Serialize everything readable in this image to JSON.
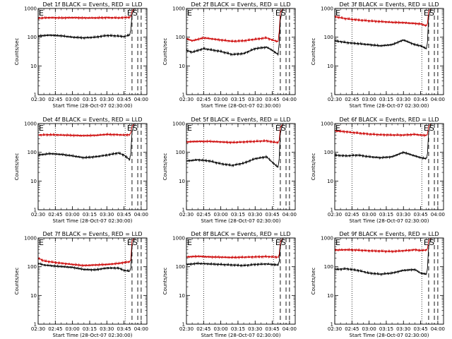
{
  "figure": {
    "bg": "#ffffff",
    "ylabel": "Counts/sec",
    "xlabel": "Start Time (28-Oct-07 02:30:00)"
  },
  "chart_data": [
    {
      "type": "line",
      "detector": "1f",
      "title": "Det 1f BLACK = Events, RED = LLD",
      "xlabel": "Start Time (28-Oct-07 02:30:00)",
      "ylabel": "Counts/sec",
      "y_scale": "log",
      "ylim": [
        1,
        1000
      ],
      "yticks": [
        "1",
        "10",
        "100",
        "1000"
      ],
      "xticks": [
        "02:30",
        "02:45",
        "03:00",
        "03:15",
        "03:30",
        "03:45",
        "04:00"
      ],
      "dotted_lines_x": [
        "02:45",
        "03:46"
      ],
      "dashed_lines_x": [
        "03:52",
        "03:57",
        "04:00"
      ],
      "dashed_labels": [
        "E",
        "S"
      ],
      "series": [
        {
          "color": "#cc0000",
          "x": [
            "02:30",
            "02:40",
            "02:50",
            "03:00",
            "03:10",
            "03:20",
            "03:30",
            "03:40",
            "03:45",
            "03:50",
            "03:51",
            "03:52",
            "03:54",
            "04:00",
            "04:03"
          ],
          "y": [
            460,
            480,
            470,
            480,
            470,
            470,
            480,
            470,
            480,
            500,
            520,
            800,
            1000,
            1000,
            1000
          ]
        },
        {
          "color": "#000000",
          "x": [
            "02:30",
            "02:40",
            "02:50",
            "03:00",
            "03:10",
            "03:20",
            "03:30",
            "03:40",
            "03:45",
            "03:50",
            "03:51",
            "03:52",
            "03:54",
            "04:00",
            "04:03"
          ],
          "y": [
            110,
            118,
            112,
            100,
            95,
            100,
            115,
            110,
            105,
            120,
            180,
            600,
            1000,
            1000,
            1000
          ]
        }
      ]
    },
    {
      "type": "line",
      "detector": "2f",
      "title": "Det 2f BLACK = Events, RED = LLD",
      "xlabel": "Start Time (28-Oct-07 02:30:00)",
      "ylabel": "Counts/sec",
      "y_scale": "log",
      "ylim": [
        1,
        1000
      ],
      "yticks": [
        "1",
        "10",
        "100",
        "1000"
      ],
      "xticks": [
        "02:30",
        "02:45",
        "03:00",
        "03:15",
        "03:30",
        "03:45",
        "04:00"
      ],
      "dotted_lines_x": [
        "02:45",
        "03:46"
      ],
      "dashed_lines_x": [
        "03:52",
        "03:57",
        "04:00"
      ],
      "dashed_labels": [
        "E",
        "S"
      ],
      "series": [
        {
          "color": "#cc0000",
          "x": [
            "02:30",
            "02:35",
            "02:45",
            "03:00",
            "03:10",
            "03:20",
            "03:30",
            "03:40",
            "03:45",
            "03:50",
            "03:51",
            "03:52",
            "03:54",
            "04:00",
            "04:03"
          ],
          "y": [
            90,
            75,
            95,
            80,
            72,
            75,
            85,
            95,
            80,
            70,
            150,
            700,
            1000,
            1000,
            1000
          ]
        },
        {
          "color": "#000000",
          "x": [
            "02:30",
            "02:35",
            "02:45",
            "03:00",
            "03:10",
            "03:20",
            "03:30",
            "03:40",
            "03:45",
            "03:50",
            "03:51",
            "03:52",
            "03:54",
            "04:00",
            "04:03"
          ],
          "y": [
            35,
            30,
            40,
            32,
            25,
            27,
            40,
            45,
            35,
            25,
            60,
            400,
            1000,
            1000,
            1000
          ]
        }
      ]
    },
    {
      "type": "line",
      "detector": "3f",
      "title": "Det 3f BLACK = Events, RED = LLD",
      "xlabel": "Start Time (28-Oct-07 02:30:00)",
      "ylabel": "Counts/sec",
      "y_scale": "log",
      "ylim": [
        1,
        1000
      ],
      "yticks": [
        "1",
        "10",
        "100",
        "1000"
      ],
      "xticks": [
        "02:30",
        "02:45",
        "03:00",
        "03:15",
        "03:30",
        "03:45",
        "04:00"
      ],
      "dotted_lines_x": [
        "02:45",
        "03:46"
      ],
      "dashed_lines_x": [
        "03:52",
        "03:57",
        "04:00"
      ],
      "dashed_labels": [
        "E",
        "S"
      ],
      "series": [
        {
          "color": "#cc0000",
          "x": [
            "02:30",
            "02:40",
            "02:50",
            "03:00",
            "03:10",
            "03:20",
            "03:30",
            "03:40",
            "03:45",
            "03:50",
            "03:51",
            "03:52",
            "03:54",
            "04:00",
            "04:03"
          ],
          "y": [
            520,
            440,
            400,
            370,
            350,
            330,
            320,
            300,
            290,
            250,
            300,
            800,
            1000,
            1000,
            1000
          ]
        },
        {
          "color": "#000000",
          "x": [
            "02:30",
            "02:40",
            "02:50",
            "03:00",
            "03:10",
            "03:20",
            "03:30",
            "03:40",
            "03:45",
            "03:50",
            "03:51",
            "03:52",
            "03:54",
            "04:00",
            "04:03"
          ],
          "y": [
            75,
            65,
            60,
            55,
            50,
            55,
            80,
            55,
            50,
            40,
            70,
            500,
            1000,
            1000,
            1000
          ]
        }
      ]
    },
    {
      "type": "line",
      "detector": "4f",
      "title": "Det 4f BLACK = Events, RED = LLD",
      "xlabel": "Start Time (28-Oct-07 02:30:00)",
      "ylabel": "Counts/sec",
      "y_scale": "log",
      "ylim": [
        1,
        1000
      ],
      "yticks": [
        "1",
        "10",
        "100",
        "1000"
      ],
      "xticks": [
        "02:30",
        "02:45",
        "03:00",
        "03:15",
        "03:30",
        "03:45",
        "04:00"
      ],
      "dotted_lines_x": [
        "02:45",
        "03:46"
      ],
      "dashed_lines_x": [
        "03:52",
        "03:57",
        "04:00"
      ],
      "dashed_labels": [
        "E",
        "S"
      ],
      "series": [
        {
          "color": "#cc0000",
          "x": [
            "02:30",
            "02:40",
            "02:50",
            "03:00",
            "03:10",
            "03:20",
            "03:30",
            "03:40",
            "03:45",
            "03:50",
            "03:51",
            "03:52",
            "03:54",
            "04:00",
            "04:03"
          ],
          "y": [
            400,
            410,
            400,
            390,
            380,
            390,
            420,
            410,
            400,
            410,
            480,
            800,
            1000,
            1000,
            1000
          ]
        },
        {
          "color": "#000000",
          "x": [
            "02:30",
            "02:40",
            "02:50",
            "03:00",
            "03:10",
            "03:20",
            "03:30",
            "03:40",
            "03:45",
            "03:50",
            "03:51",
            "03:52",
            "03:54",
            "04:00",
            "04:03"
          ],
          "y": [
            80,
            90,
            85,
            75,
            65,
            70,
            80,
            95,
            80,
            55,
            100,
            500,
            1000,
            1000,
            1000
          ]
        }
      ]
    },
    {
      "type": "line",
      "detector": "5f",
      "title": "Det 5f BLACK = Events, RED = LLD",
      "xlabel": "Start Time (28-Oct-07 02:30:00)",
      "ylabel": "Counts/sec",
      "y_scale": "log",
      "ylim": [
        1,
        1000
      ],
      "yticks": [
        "1",
        "10",
        "100",
        "1000"
      ],
      "xticks": [
        "02:30",
        "02:45",
        "03:00",
        "03:15",
        "03:30",
        "03:45",
        "04:00"
      ],
      "dotted_lines_x": [
        "02:45",
        "03:46"
      ],
      "dashed_lines_x": [
        "03:52",
        "03:57",
        "04:00"
      ],
      "dashed_labels": [
        "E",
        "S"
      ],
      "series": [
        {
          "color": "#cc0000",
          "x": [
            "02:30",
            "02:40",
            "02:50",
            "03:00",
            "03:10",
            "03:20",
            "03:30",
            "03:40",
            "03:45",
            "03:50",
            "03:51",
            "03:52",
            "03:54",
            "04:00",
            "04:03"
          ],
          "y": [
            230,
            240,
            240,
            230,
            220,
            230,
            240,
            250,
            230,
            220,
            260,
            700,
            1000,
            1000,
            1000
          ]
        },
        {
          "color": "#000000",
          "x": [
            "02:30",
            "02:40",
            "02:50",
            "03:00",
            "03:10",
            "03:20",
            "03:30",
            "03:40",
            "03:45",
            "03:50",
            "03:51",
            "03:52",
            "03:54",
            "04:00",
            "04:03"
          ],
          "y": [
            50,
            55,
            50,
            40,
            35,
            42,
            60,
            70,
            45,
            30,
            60,
            450,
            1000,
            1000,
            1000
          ]
        }
      ]
    },
    {
      "type": "line",
      "detector": "6f",
      "title": "Det 6f BLACK = Events, RED = LLD",
      "xlabel": "Start Time (28-Oct-07 02:30:00)",
      "ylabel": "Counts/sec",
      "y_scale": "log",
      "ylim": [
        1,
        1000
      ],
      "yticks": [
        "1",
        "10",
        "100",
        "1000"
      ],
      "xticks": [
        "02:30",
        "02:45",
        "03:00",
        "03:15",
        "03:30",
        "03:45",
        "04:00"
      ],
      "dotted_lines_x": [
        "02:45",
        "03:46"
      ],
      "dashed_lines_x": [
        "03:52",
        "03:57",
        "04:00"
      ],
      "dashed_labels": [
        "E",
        "S"
      ],
      "series": [
        {
          "color": "#cc0000",
          "x": [
            "02:30",
            "02:40",
            "02:50",
            "03:00",
            "03:10",
            "03:20",
            "03:30",
            "03:40",
            "03:45",
            "03:50",
            "03:51",
            "03:52",
            "03:54",
            "04:00",
            "04:03"
          ],
          "y": [
            560,
            520,
            470,
            430,
            410,
            400,
            400,
            420,
            400,
            390,
            450,
            800,
            1000,
            1000,
            1000
          ]
        },
        {
          "color": "#000000",
          "x": [
            "02:30",
            "02:40",
            "02:50",
            "03:00",
            "03:10",
            "03:20",
            "03:30",
            "03:40",
            "03:45",
            "03:50",
            "03:51",
            "03:52",
            "03:54",
            "04:00",
            "04:03"
          ],
          "y": [
            80,
            75,
            80,
            70,
            65,
            70,
            100,
            75,
            65,
            60,
            90,
            500,
            1000,
            1000,
            1000
          ]
        }
      ]
    },
    {
      "type": "line",
      "detector": "7f",
      "title": "Det 7f BLACK = Events, RED = LLD",
      "xlabel": "Start Time (28-Oct-07 02:30:00)",
      "ylabel": "Counts/sec",
      "y_scale": "log",
      "ylim": [
        1,
        1000
      ],
      "yticks": [
        "1",
        "10",
        "100",
        "1000"
      ],
      "xticks": [
        "02:30",
        "02:45",
        "03:00",
        "03:15",
        "03:30",
        "03:45",
        "04:00"
      ],
      "dotted_lines_x": [
        "02:45",
        "03:46"
      ],
      "dashed_lines_x": [
        "03:52",
        "03:57",
        "04:00"
      ],
      "dashed_labels": [
        "E",
        "S"
      ],
      "series": [
        {
          "color": "#cc0000",
          "x": [
            "02:30",
            "02:35",
            "02:45",
            "03:00",
            "03:10",
            "03:20",
            "03:30",
            "03:40",
            "03:45",
            "03:50",
            "03:51",
            "03:52",
            "03:54",
            "04:00",
            "04:03"
          ],
          "y": [
            200,
            160,
            140,
            120,
            110,
            115,
            120,
            130,
            140,
            150,
            180,
            800,
            1000,
            1000,
            1000
          ]
        },
        {
          "color": "#000000",
          "x": [
            "02:30",
            "02:35",
            "02:45",
            "03:00",
            "03:10",
            "03:20",
            "03:30",
            "03:40",
            "03:45",
            "03:50",
            "03:51",
            "03:52",
            "03:54",
            "04:00",
            "04:03"
          ],
          "y": [
            130,
            115,
            105,
            95,
            80,
            78,
            90,
            90,
            75,
            70,
            90,
            500,
            1000,
            1000,
            1000
          ]
        }
      ]
    },
    {
      "type": "line",
      "detector": "8f",
      "title": "Det 8f BLACK = Events, RED = LLD",
      "xlabel": "Start Time (28-Oct-07 02:30:00)",
      "ylabel": "Counts/sec",
      "y_scale": "log",
      "ylim": [
        1,
        1000
      ],
      "yticks": [
        "1",
        "10",
        "100",
        "1000"
      ],
      "xticks": [
        "02:30",
        "02:45",
        "03:00",
        "03:15",
        "03:30",
        "03:45",
        "04:00"
      ],
      "dotted_lines_x": [
        "02:45",
        "03:46"
      ],
      "dashed_lines_x": [
        "03:52",
        "03:57",
        "04:00"
      ],
      "dashed_labels": [
        "E",
        "S"
      ],
      "series": [
        {
          "color": "#cc0000",
          "x": [
            "02:30",
            "02:40",
            "02:50",
            "03:00",
            "03:10",
            "03:20",
            "03:30",
            "03:40",
            "03:45",
            "03:50",
            "03:51",
            "03:52",
            "03:54",
            "04:00",
            "04:03"
          ],
          "y": [
            220,
            230,
            220,
            215,
            210,
            215,
            220,
            225,
            220,
            215,
            250,
            700,
            1000,
            1000,
            1000
          ]
        },
        {
          "color": "#000000",
          "x": [
            "02:30",
            "02:40",
            "02:50",
            "03:00",
            "03:10",
            "03:20",
            "03:30",
            "03:40",
            "03:45",
            "03:50",
            "03:51",
            "03:52",
            "03:54",
            "04:00",
            "04:03"
          ],
          "y": [
            120,
            130,
            125,
            120,
            115,
            110,
            120,
            125,
            120,
            115,
            150,
            500,
            1000,
            1000,
            1000
          ]
        }
      ]
    },
    {
      "type": "line",
      "detector": "9f",
      "title": "Det 9f BLACK = Events, RED = LLD",
      "xlabel": "Start Time (28-Oct-07 02:30:00)",
      "ylabel": "Counts/sec",
      "y_scale": "log",
      "ylim": [
        1,
        1000
      ],
      "yticks": [
        "1",
        "10",
        "100",
        "1000"
      ],
      "xticks": [
        "02:30",
        "02:45",
        "03:00",
        "03:15",
        "03:30",
        "03:45",
        "04:00"
      ],
      "dotted_lines_x": [
        "02:45",
        "03:46"
      ],
      "dashed_lines_x": [
        "03:52",
        "03:57",
        "04:00"
      ],
      "dashed_labels": [
        "E",
        "S"
      ],
      "series": [
        {
          "color": "#cc0000",
          "x": [
            "02:30",
            "02:40",
            "02:50",
            "03:00",
            "03:10",
            "03:20",
            "03:30",
            "03:40",
            "03:45",
            "03:50",
            "03:51",
            "03:52",
            "03:54",
            "04:00",
            "04:03"
          ],
          "y": [
            380,
            390,
            380,
            360,
            350,
            340,
            360,
            390,
            370,
            380,
            430,
            800,
            1000,
            1000,
            1000
          ]
        },
        {
          "color": "#000000",
          "x": [
            "02:30",
            "02:40",
            "02:50",
            "03:00",
            "03:10",
            "03:20",
            "03:30",
            "03:40",
            "03:45",
            "03:50",
            "03:51",
            "03:52",
            "03:54",
            "04:00",
            "04:03"
          ],
          "y": [
            80,
            85,
            75,
            60,
            55,
            60,
            75,
            80,
            60,
            55,
            90,
            500,
            1000,
            1000,
            1000
          ]
        }
      ]
    }
  ]
}
